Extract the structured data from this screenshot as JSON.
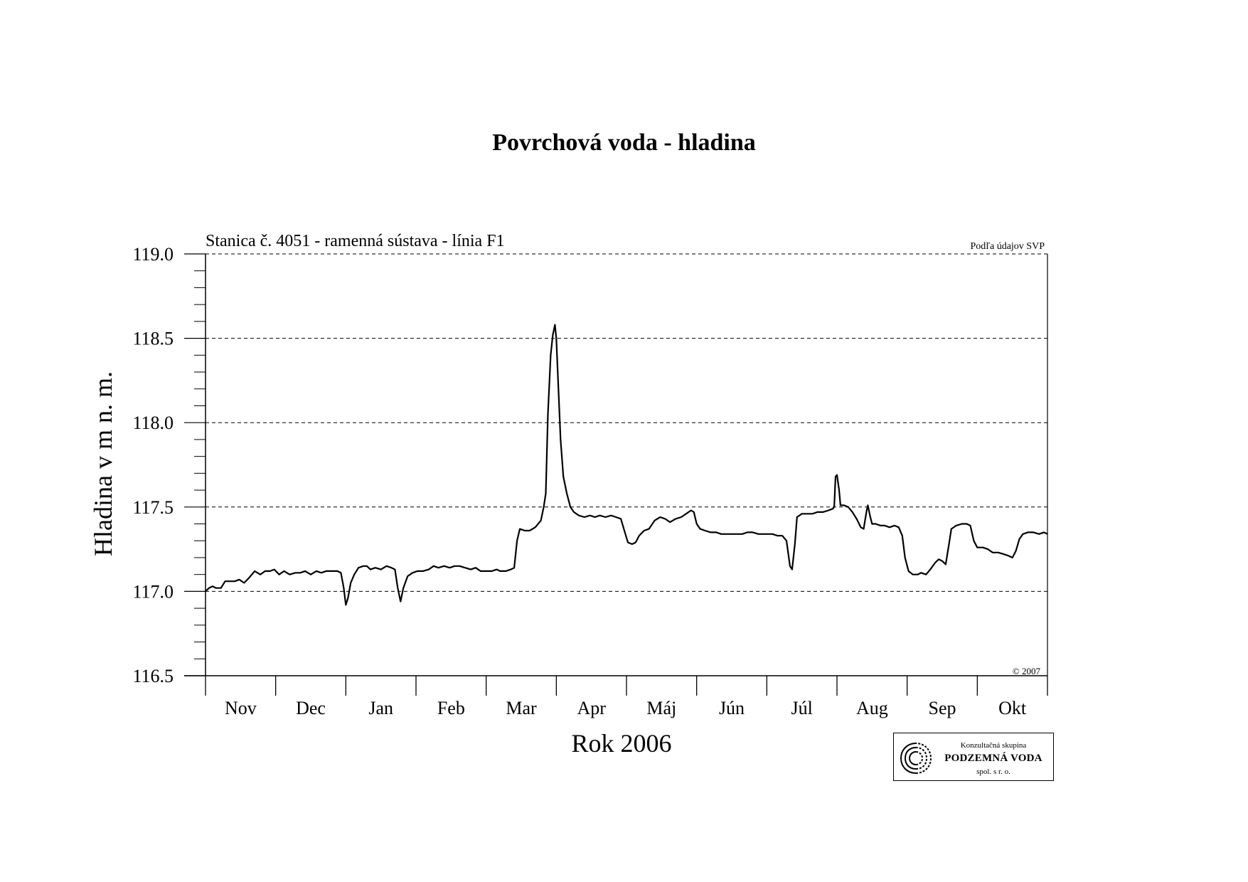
{
  "header": {
    "title": "Povrchová voda - hladina"
  },
  "chart_data": {
    "type": "line",
    "title": "Povrchová voda - hladina",
    "subtitle": "Stanica č. 4051 - ramenná sústava - línia F1",
    "source_note": "Podľa údajov SVP",
    "copyright": "© 2007",
    "xlabel": "Rok 2006",
    "ylabel": "Hladina v m n. m.",
    "ylim": [
      116.5,
      119.0
    ],
    "xlim": [
      0,
      12
    ],
    "grid": "horizontal dashed at 117.0, 117.5, 118.0, 118.5, 119.0",
    "legend": "none",
    "y_ticks": [
      "116.5",
      "117.0",
      "117.5",
      "118.0",
      "118.5",
      "119.0"
    ],
    "months": [
      "Nov",
      "Dec",
      "Jan",
      "Feb",
      "Mar",
      "Apr",
      "Máj",
      "Jún",
      "Júl",
      "Aug",
      "Sep",
      "Okt"
    ],
    "month_boundaries": [
      0,
      1,
      2,
      3,
      4,
      5,
      6,
      7,
      8,
      9,
      10,
      11,
      12
    ],
    "series": [
      {
        "color": "#000000",
        "points": [
          [
            0.0,
            117.0
          ],
          [
            0.05,
            117.02
          ],
          [
            0.1,
            117.03
          ],
          [
            0.15,
            117.02
          ],
          [
            0.22,
            117.02
          ],
          [
            0.28,
            117.06
          ],
          [
            0.35,
            117.06
          ],
          [
            0.42,
            117.06
          ],
          [
            0.48,
            117.07
          ],
          [
            0.55,
            117.05
          ],
          [
            0.62,
            117.08
          ],
          [
            0.7,
            117.12
          ],
          [
            0.78,
            117.1
          ],
          [
            0.85,
            117.12
          ],
          [
            0.92,
            117.12
          ],
          [
            0.98,
            117.13
          ],
          [
            1.05,
            117.1
          ],
          [
            1.12,
            117.12
          ],
          [
            1.2,
            117.1
          ],
          [
            1.28,
            117.11
          ],
          [
            1.35,
            117.11
          ],
          [
            1.42,
            117.12
          ],
          [
            1.5,
            117.1
          ],
          [
            1.58,
            117.12
          ],
          [
            1.65,
            117.11
          ],
          [
            1.72,
            117.12
          ],
          [
            1.8,
            117.12
          ],
          [
            1.88,
            117.12
          ],
          [
            1.93,
            117.11
          ],
          [
            1.97,
            117.02
          ],
          [
            2.0,
            116.92
          ],
          [
            2.03,
            116.96
          ],
          [
            2.07,
            117.05
          ],
          [
            2.12,
            117.1
          ],
          [
            2.18,
            117.14
          ],
          [
            2.25,
            117.15
          ],
          [
            2.3,
            117.15
          ],
          [
            2.35,
            117.13
          ],
          [
            2.42,
            117.14
          ],
          [
            2.5,
            117.13
          ],
          [
            2.58,
            117.15
          ],
          [
            2.65,
            117.14
          ],
          [
            2.7,
            117.13
          ],
          [
            2.74,
            117.02
          ],
          [
            2.78,
            116.94
          ],
          [
            2.82,
            117.02
          ],
          [
            2.88,
            117.09
          ],
          [
            2.95,
            117.11
          ],
          [
            3.02,
            117.12
          ],
          [
            3.1,
            117.12
          ],
          [
            3.18,
            117.13
          ],
          [
            3.25,
            117.15
          ],
          [
            3.32,
            117.14
          ],
          [
            3.4,
            117.15
          ],
          [
            3.48,
            117.14
          ],
          [
            3.55,
            117.15
          ],
          [
            3.62,
            117.15
          ],
          [
            3.7,
            117.14
          ],
          [
            3.78,
            117.13
          ],
          [
            3.85,
            117.14
          ],
          [
            3.92,
            117.12
          ],
          [
            4.0,
            117.12
          ],
          [
            4.08,
            117.12
          ],
          [
            4.15,
            117.13
          ],
          [
            4.2,
            117.12
          ],
          [
            4.28,
            117.12
          ],
          [
            4.35,
            117.13
          ],
          [
            4.4,
            117.14
          ],
          [
            4.44,
            117.3
          ],
          [
            4.48,
            117.37
          ],
          [
            4.55,
            117.36
          ],
          [
            4.62,
            117.36
          ],
          [
            4.7,
            117.38
          ],
          [
            4.78,
            117.42
          ],
          [
            4.82,
            117.5
          ],
          [
            4.85,
            117.58
          ],
          [
            4.88,
            118.05
          ],
          [
            4.92,
            118.4
          ],
          [
            4.95,
            118.52
          ],
          [
            4.98,
            118.58
          ],
          [
            5.0,
            118.5
          ],
          [
            5.03,
            118.2
          ],
          [
            5.06,
            117.9
          ],
          [
            5.1,
            117.68
          ],
          [
            5.15,
            117.58
          ],
          [
            5.2,
            117.5
          ],
          [
            5.25,
            117.47
          ],
          [
            5.32,
            117.45
          ],
          [
            5.4,
            117.44
          ],
          [
            5.48,
            117.45
          ],
          [
            5.55,
            117.44
          ],
          [
            5.62,
            117.45
          ],
          [
            5.7,
            117.44
          ],
          [
            5.78,
            117.45
          ],
          [
            5.85,
            117.44
          ],
          [
            5.92,
            117.43
          ],
          [
            5.97,
            117.36
          ],
          [
            6.02,
            117.29
          ],
          [
            6.08,
            117.28
          ],
          [
            6.13,
            117.29
          ],
          [
            6.18,
            117.33
          ],
          [
            6.25,
            117.36
          ],
          [
            6.32,
            117.37
          ],
          [
            6.4,
            117.42
          ],
          [
            6.48,
            117.44
          ],
          [
            6.55,
            117.43
          ],
          [
            6.62,
            117.41
          ],
          [
            6.7,
            117.43
          ],
          [
            6.78,
            117.44
          ],
          [
            6.85,
            117.46
          ],
          [
            6.92,
            117.48
          ],
          [
            6.96,
            117.47
          ],
          [
            7.0,
            117.4
          ],
          [
            7.05,
            117.37
          ],
          [
            7.12,
            117.36
          ],
          [
            7.2,
            117.35
          ],
          [
            7.28,
            117.35
          ],
          [
            7.35,
            117.34
          ],
          [
            7.42,
            117.34
          ],
          [
            7.5,
            117.34
          ],
          [
            7.58,
            117.34
          ],
          [
            7.65,
            117.34
          ],
          [
            7.72,
            117.35
          ],
          [
            7.8,
            117.35
          ],
          [
            7.88,
            117.34
          ],
          [
            7.95,
            117.34
          ],
          [
            8.02,
            117.34
          ],
          [
            8.08,
            117.34
          ],
          [
            8.15,
            117.33
          ],
          [
            8.22,
            117.33
          ],
          [
            8.28,
            117.3
          ],
          [
            8.33,
            117.15
          ],
          [
            8.36,
            117.13
          ],
          [
            8.4,
            117.28
          ],
          [
            8.43,
            117.44
          ],
          [
            8.5,
            117.46
          ],
          [
            8.58,
            117.46
          ],
          [
            8.65,
            117.46
          ],
          [
            8.72,
            117.47
          ],
          [
            8.8,
            117.47
          ],
          [
            8.88,
            117.48
          ],
          [
            8.94,
            117.49
          ],
          [
            8.96,
            117.5
          ],
          [
            8.98,
            117.68
          ],
          [
            9.0,
            117.69
          ],
          [
            9.03,
            117.6
          ],
          [
            9.05,
            117.51
          ],
          [
            9.1,
            117.51
          ],
          [
            9.16,
            117.5
          ],
          [
            9.22,
            117.47
          ],
          [
            9.28,
            117.43
          ],
          [
            9.34,
            117.38
          ],
          [
            9.38,
            117.37
          ],
          [
            9.42,
            117.47
          ],
          [
            9.44,
            117.51
          ],
          [
            9.47,
            117.45
          ],
          [
            9.5,
            117.4
          ],
          [
            9.55,
            117.4
          ],
          [
            9.62,
            117.39
          ],
          [
            9.68,
            117.39
          ],
          [
            9.75,
            117.38
          ],
          [
            9.82,
            117.39
          ],
          [
            9.88,
            117.38
          ],
          [
            9.93,
            117.33
          ],
          [
            9.97,
            117.2
          ],
          [
            10.02,
            117.12
          ],
          [
            10.08,
            117.1
          ],
          [
            10.15,
            117.1
          ],
          [
            10.2,
            117.11
          ],
          [
            10.27,
            117.1
          ],
          [
            10.33,
            117.13
          ],
          [
            10.4,
            117.17
          ],
          [
            10.45,
            117.19
          ],
          [
            10.5,
            117.18
          ],
          [
            10.55,
            117.16
          ],
          [
            10.6,
            117.29
          ],
          [
            10.63,
            117.37
          ],
          [
            10.7,
            117.39
          ],
          [
            10.78,
            117.4
          ],
          [
            10.85,
            117.4
          ],
          [
            10.9,
            117.39
          ],
          [
            10.95,
            117.3
          ],
          [
            11.0,
            117.26
          ],
          [
            11.08,
            117.26
          ],
          [
            11.15,
            117.25
          ],
          [
            11.22,
            117.23
          ],
          [
            11.3,
            117.23
          ],
          [
            11.38,
            117.22
          ],
          [
            11.45,
            117.21
          ],
          [
            11.5,
            117.2
          ],
          [
            11.55,
            117.24
          ],
          [
            11.6,
            117.31
          ],
          [
            11.65,
            117.34
          ],
          [
            11.72,
            117.35
          ],
          [
            11.8,
            117.35
          ],
          [
            11.88,
            117.34
          ],
          [
            11.95,
            117.35
          ],
          [
            12.0,
            117.34
          ]
        ]
      }
    ]
  },
  "logo": {
    "line1": "Konzultačná skupina",
    "line2": "PODZEMNÁ VODA",
    "line3": "spol. s r. o."
  }
}
